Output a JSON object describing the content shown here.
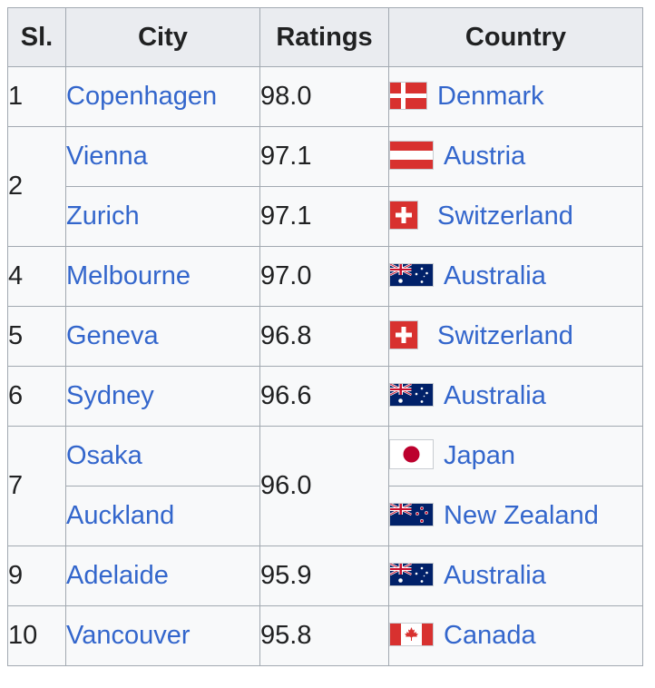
{
  "headers": {
    "sl": "Sl.",
    "city": "City",
    "ratings": "Ratings",
    "country": "Country"
  },
  "colors": {
    "link": "#3366cc",
    "header_bg": "#eaecf0",
    "cell_bg": "#f8f9fa",
    "border": "#a2a9b1"
  },
  "groups": [
    {
      "sl": "1",
      "rows": [
        {
          "city": "Copenhagen",
          "rating": "98.0",
          "country": "Denmark",
          "flag": "denmark-flag-icon"
        }
      ]
    },
    {
      "sl": "2",
      "rows": [
        {
          "city": "Vienna",
          "rating": "97.1",
          "country": "Austria",
          "flag": "austria-flag-icon"
        },
        {
          "city": "Zurich",
          "rating": "97.1",
          "country": "Switzerland",
          "flag": "switzerland-flag-icon"
        }
      ]
    },
    {
      "sl": "4",
      "rows": [
        {
          "city": "Melbourne",
          "rating": "97.0",
          "country": "Australia",
          "flag": "australia-flag-icon"
        }
      ]
    },
    {
      "sl": "5",
      "rows": [
        {
          "city": "Geneva",
          "rating": "96.8",
          "country": "Switzerland",
          "flag": "switzerland-flag-icon"
        }
      ]
    },
    {
      "sl": "6",
      "rows": [
        {
          "city": "Sydney",
          "rating": "96.6",
          "country": "Australia",
          "flag": "australia-flag-icon"
        }
      ]
    },
    {
      "sl": "7",
      "rating": "96.0",
      "rows": [
        {
          "city": "Osaka",
          "country": "Japan",
          "flag": "japan-flag-icon"
        },
        {
          "city": "Auckland",
          "country": "New Zealand",
          "flag": "new-zealand-flag-icon"
        }
      ]
    },
    {
      "sl": "9",
      "rows": [
        {
          "city": "Adelaide",
          "rating": "95.9",
          "country": "Australia",
          "flag": "australia-flag-icon"
        }
      ]
    },
    {
      "sl": "10",
      "rows": [
        {
          "city": "Vancouver",
          "rating": "95.8",
          "country": "Canada",
          "flag": "canada-flag-icon"
        }
      ]
    }
  ]
}
